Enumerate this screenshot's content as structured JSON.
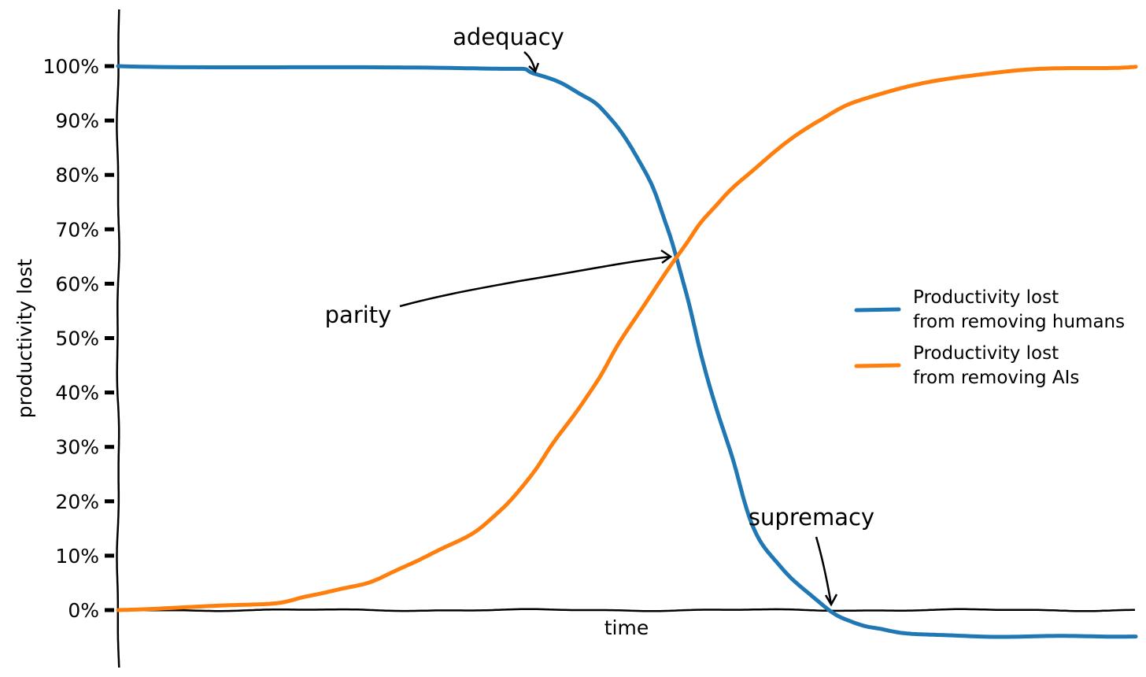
{
  "chart_data": {
    "type": "line",
    "style": "xkcd",
    "title": "",
    "xlabel": "time",
    "ylabel": "productivity lost",
    "xlim": [
      0,
      100
    ],
    "ylim": [
      -10,
      110
    ],
    "yticks": [
      "0%",
      "10%",
      "20%",
      "30%",
      "40%",
      "50%",
      "60%",
      "70%",
      "80%",
      "90%",
      "100%"
    ],
    "ytick_values": [
      0,
      10,
      20,
      30,
      40,
      50,
      60,
      70,
      80,
      90,
      100
    ],
    "grid": false,
    "legend_position": "right",
    "series": [
      {
        "name": "Productivity lost\nfrom removing humans",
        "name_lines": [
          "Productivity lost",
          "from removing humans"
        ],
        "color": "#1f77b4",
        "x": [
          0,
          35,
          41,
          45.5,
          48.5,
          52,
          54,
          56,
          58,
          60.5,
          62.5,
          65.5,
          70,
          73.5,
          78,
          89,
          100
        ],
        "y": [
          100,
          99.7,
          98.5,
          95,
          90,
          80,
          70,
          57,
          42,
          27,
          15,
          7,
          0,
          -3,
          -4.3,
          -4.8,
          -5
        ]
      },
      {
        "name": "Productivity lost\nfrom removing AIs",
        "name_lines": [
          "Productivity lost",
          "from removing AIs"
        ],
        "color": "#ff7f0e",
        "x": [
          0,
          14,
          19.3,
          24.7,
          30.2,
          35.6,
          39.4,
          42.5,
          46.4,
          49.5,
          55,
          58,
          61.9,
          68.8,
          75,
          87.4,
          100
        ],
        "y": [
          0,
          1,
          3,
          5,
          10,
          15,
          22,
          30,
          40,
          50,
          65,
          73,
          80,
          90,
          95,
          99,
          100
        ]
      }
    ],
    "annotations": [
      {
        "text": "adequacy"
      },
      {
        "text": "parity"
      },
      {
        "text": "supremacy"
      }
    ]
  }
}
